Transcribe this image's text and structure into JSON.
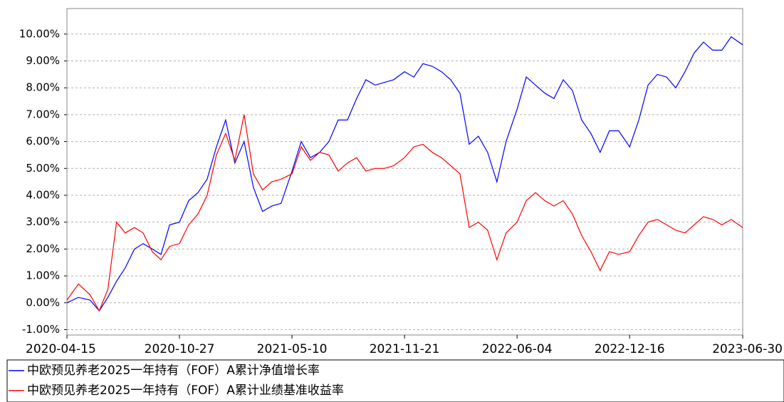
{
  "chart_data": {
    "type": "line",
    "x": [
      "2020-04-15",
      "2020-05-05",
      "2020-05-25",
      "2020-06-10",
      "2020-06-25",
      "2020-07-10",
      "2020-07-25",
      "2020-08-10",
      "2020-08-25",
      "2020-09-10",
      "2020-09-25",
      "2020-10-10",
      "2020-10-27",
      "2020-11-12",
      "2020-11-28",
      "2020-12-14",
      "2020-12-30",
      "2021-01-15",
      "2021-01-31",
      "2021-02-16",
      "2021-03-04",
      "2021-03-20",
      "2021-04-05",
      "2021-04-21",
      "2021-05-10",
      "2021-05-26",
      "2021-06-11",
      "2021-06-27",
      "2021-07-13",
      "2021-07-29",
      "2021-08-14",
      "2021-08-30",
      "2021-09-15",
      "2021-10-01",
      "2021-10-17",
      "2021-11-02",
      "2021-11-21",
      "2021-12-07",
      "2021-12-23",
      "2022-01-08",
      "2022-01-24",
      "2022-02-09",
      "2022-02-25",
      "2022-03-13",
      "2022-03-29",
      "2022-04-14",
      "2022-04-30",
      "2022-05-16",
      "2022-06-04",
      "2022-06-20",
      "2022-07-06",
      "2022-07-22",
      "2022-08-07",
      "2022-08-23",
      "2022-09-08",
      "2022-09-24",
      "2022-10-10",
      "2022-10-26",
      "2022-11-11",
      "2022-11-27",
      "2022-12-16",
      "2023-01-01",
      "2023-01-17",
      "2023-02-02",
      "2023-02-18",
      "2023-03-06",
      "2023-03-22",
      "2023-04-07",
      "2023-04-23",
      "2023-05-09",
      "2023-05-25",
      "2023-06-10",
      "2023-06-30"
    ],
    "series": [
      {
        "name": "中欧预见养老2025一年持有（FOF）A累计净值增长率",
        "color": "#0000ff",
        "values": [
          0.0,
          0.2,
          0.1,
          -0.3,
          0.2,
          0.8,
          1.3,
          2.0,
          2.2,
          2.0,
          1.8,
          2.9,
          3.0,
          3.8,
          4.1,
          4.6,
          5.8,
          6.8,
          5.2,
          6.0,
          4.3,
          3.4,
          3.6,
          3.7,
          4.9,
          6.0,
          5.4,
          5.6,
          6.0,
          6.8,
          6.8,
          7.6,
          8.3,
          8.1,
          8.2,
          8.3,
          8.6,
          8.4,
          8.9,
          8.8,
          8.6,
          8.3,
          7.8,
          5.9,
          6.2,
          5.6,
          4.5,
          6.0,
          7.2,
          8.4,
          8.1,
          7.8,
          7.6,
          8.3,
          7.9,
          6.8,
          6.3,
          5.6,
          6.4,
          6.4,
          5.8,
          6.8,
          8.1,
          8.5,
          8.4,
          8.0,
          8.6,
          9.3,
          9.7,
          9.4,
          9.4,
          9.9,
          9.6
        ]
      },
      {
        "name": "中欧预见养老2025一年持有（FOF）A累计业绩基准收益率",
        "color": "#ff0000",
        "values": [
          0.1,
          0.7,
          0.3,
          -0.3,
          0.5,
          3.0,
          2.6,
          2.8,
          2.6,
          1.9,
          1.6,
          2.1,
          2.2,
          2.9,
          3.3,
          4.0,
          5.5,
          6.3,
          5.3,
          7.0,
          4.8,
          4.2,
          4.5,
          4.6,
          4.8,
          5.8,
          5.3,
          5.6,
          5.5,
          4.9,
          5.2,
          5.4,
          4.9,
          5.0,
          5.0,
          5.1,
          5.4,
          5.8,
          5.9,
          5.6,
          5.4,
          5.1,
          4.8,
          2.8,
          3.0,
          2.7,
          1.6,
          2.6,
          3.0,
          3.8,
          4.1,
          3.8,
          3.6,
          3.8,
          3.3,
          2.5,
          1.9,
          1.2,
          1.9,
          1.8,
          1.9,
          2.5,
          3.0,
          3.1,
          2.9,
          2.7,
          2.6,
          2.9,
          3.2,
          3.1,
          2.9,
          3.1,
          2.8
        ]
      }
    ],
    "xticks": [
      "2020-04-15",
      "2020-10-27",
      "2021-05-10",
      "2021-11-21",
      "2022-06-04",
      "2022-12-16",
      "2023-06-30"
    ],
    "xlim": [
      "2020-04-15",
      "2023-06-30"
    ],
    "ylim": [
      -1.2,
      10.95
    ],
    "yticks": [
      {
        "value": -1,
        "label": "-1.00%"
      },
      {
        "value": 0,
        "label": "0.00%"
      },
      {
        "value": 1,
        "label": "1.00%"
      },
      {
        "value": 2,
        "label": "2.00%"
      },
      {
        "value": 3,
        "label": "3.00%"
      },
      {
        "value": 4,
        "label": "4.00%"
      },
      {
        "value": 5,
        "label": "5.00%"
      },
      {
        "value": 6,
        "label": "6.00%"
      },
      {
        "value": 7,
        "label": "7.00%"
      },
      {
        "value": 8,
        "label": "8.00%"
      },
      {
        "value": 9,
        "label": "9.00%"
      },
      {
        "value": 10,
        "label": "10.00%"
      }
    ],
    "grid": true
  }
}
